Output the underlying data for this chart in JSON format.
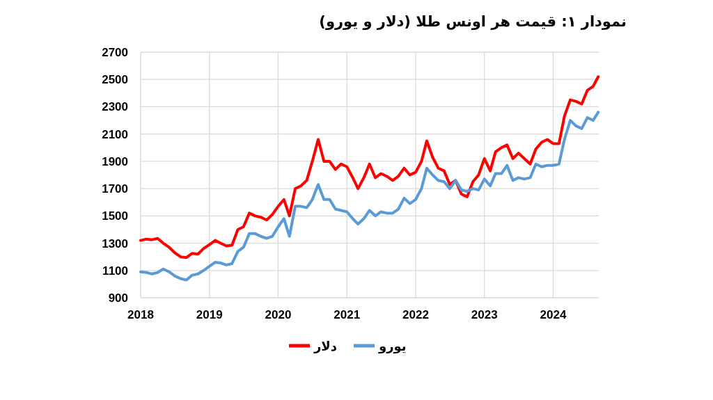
{
  "chart_data": {
    "type": "line",
    "title": "نمودار ۱: قیمت هر اونس طلا (دلار و یورو)",
    "x": [
      "2018-01-01",
      "2018-02-01",
      "2018-03-01",
      "2018-04-01",
      "2018-05-01",
      "2018-06-01",
      "2018-07-01",
      "2018-08-01",
      "2018-09-01",
      "2018-10-01",
      "2018-11-01",
      "2018-12-01",
      "2019-01-01",
      "2019-02-01",
      "2019-03-01",
      "2019-04-01",
      "2019-05-01",
      "2019-06-01",
      "2019-07-01",
      "2019-08-01",
      "2019-09-01",
      "2019-10-01",
      "2019-11-01",
      "2019-12-01",
      "2020-01-01",
      "2020-02-01",
      "2020-03-01",
      "2020-04-01",
      "2020-05-01",
      "2020-06-01",
      "2020-07-01",
      "2020-08-01",
      "2020-09-01",
      "2020-10-01",
      "2020-11-01",
      "2020-12-01",
      "2021-01-01",
      "2021-02-01",
      "2021-03-01",
      "2021-04-01",
      "2021-05-01",
      "2021-06-01",
      "2021-07-01",
      "2021-08-01",
      "2021-09-01",
      "2021-10-01",
      "2021-11-01",
      "2021-12-01",
      "2022-01-01",
      "2022-02-01",
      "2022-03-01",
      "2022-04-01",
      "2022-05-01",
      "2022-06-01",
      "2022-07-01",
      "2022-08-01",
      "2022-09-01",
      "2022-10-01",
      "2022-11-01",
      "2022-12-01",
      "2023-01-01",
      "2023-02-01",
      "2023-03-01",
      "2023-04-01",
      "2023-05-01",
      "2023-06-01",
      "2023-07-01",
      "2023-08-01",
      "2023-09-01",
      "2023-10-01",
      "2023-11-01",
      "2023-12-01",
      "2024-01-01",
      "2024-02-01",
      "2024-03-01",
      "2024-04-01",
      "2024-05-01",
      "2024-06-01",
      "2024-07-01",
      "2024-08-01",
      "2024-08-28"
    ],
    "series": [
      {
        "name": "دلار",
        "color": "#ff0000",
        "values": [
          1320,
          1330,
          1325,
          1335,
          1300,
          1270,
          1230,
          1200,
          1195,
          1225,
          1220,
          1260,
          1290,
          1320,
          1300,
          1280,
          1285,
          1400,
          1420,
          1520,
          1500,
          1490,
          1470,
          1510,
          1570,
          1620,
          1500,
          1700,
          1720,
          1760,
          1900,
          2060,
          1900,
          1900,
          1840,
          1880,
          1860,
          1780,
          1700,
          1780,
          1880,
          1780,
          1810,
          1790,
          1760,
          1790,
          1850,
          1800,
          1820,
          1900,
          2050,
          1930,
          1850,
          1830,
          1730,
          1760,
          1660,
          1640,
          1750,
          1800,
          1920,
          1830,
          1970,
          2000,
          2020,
          1920,
          1960,
          1920,
          1880,
          1990,
          2040,
          2060,
          2030,
          2030,
          2230,
          2350,
          2340,
          2320,
          2420,
          2450,
          2520
        ]
      },
      {
        "name": "یورو",
        "color": "#5b9bd5",
        "values": [
          1090,
          1085,
          1075,
          1085,
          1110,
          1090,
          1060,
          1040,
          1030,
          1065,
          1075,
          1100,
          1130,
          1160,
          1155,
          1140,
          1150,
          1240,
          1270,
          1370,
          1370,
          1350,
          1335,
          1350,
          1420,
          1480,
          1350,
          1570,
          1570,
          1560,
          1620,
          1730,
          1620,
          1620,
          1550,
          1540,
          1530,
          1480,
          1440,
          1480,
          1540,
          1500,
          1530,
          1520,
          1520,
          1550,
          1630,
          1590,
          1620,
          1700,
          1850,
          1800,
          1760,
          1750,
          1700,
          1760,
          1690,
          1680,
          1700,
          1690,
          1770,
          1720,
          1810,
          1810,
          1870,
          1760,
          1780,
          1770,
          1780,
          1880,
          1860,
          1870,
          1870,
          1880,
          2060,
          2200,
          2160,
          2140,
          2220,
          2200,
          2260
        ]
      }
    ],
    "xlim": [
      "2018-01-01",
      "2024-08-31"
    ],
    "xticks": [
      {
        "value": "2018-01-01",
        "label": "2018"
      },
      {
        "value": "2019-01-01",
        "label": "2019"
      },
      {
        "value": "2020-01-01",
        "label": "2020"
      },
      {
        "value": "2021-01-01",
        "label": "2021"
      },
      {
        "value": "2022-01-01",
        "label": "2022"
      },
      {
        "value": "2023-01-01",
        "label": "2023"
      },
      {
        "value": "2024-01-01",
        "label": "2024"
      }
    ],
    "ylim": [
      900,
      2700
    ],
    "yticks": [
      900,
      1100,
      1300,
      1500,
      1700,
      1900,
      2100,
      2300,
      2500,
      2700
    ],
    "grid": true,
    "legend": "bottom",
    "marker": "none",
    "line_style": "solid"
  }
}
